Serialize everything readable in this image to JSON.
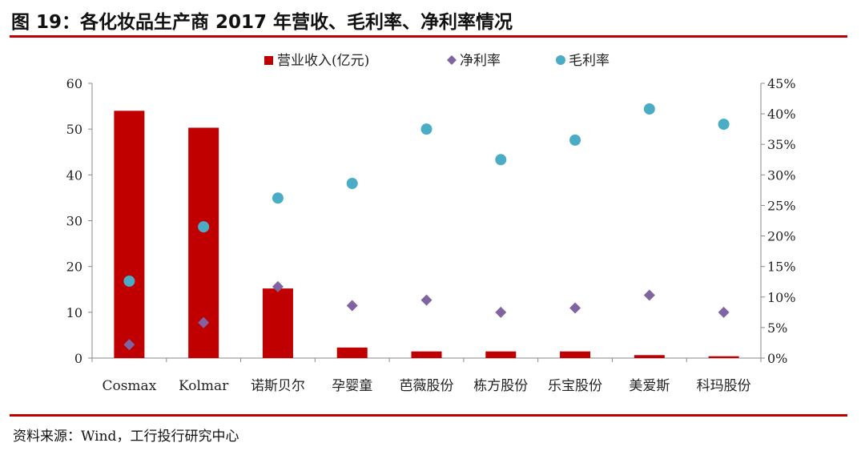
{
  "title": "图 19：各化妆品生产商 2017 年营收、毛利率、净利率情况",
  "source": "资料来源：Wind，工行投行研究中心",
  "colors": {
    "bar": "#c00000",
    "net": "#8064a2",
    "gross": "#4bacc6",
    "rule": "#c00000"
  },
  "chart_data": {
    "type": "bar+scatter",
    "categories": [
      "Cosmax",
      "Kolmar",
      "诺斯贝尔",
      "孕婴童",
      "芭薇股份",
      "栋方股份",
      "乐宝股份",
      "美爱斯",
      "科玛股份"
    ],
    "series": [
      {
        "name": "营业收入(亿元)",
        "type": "bar",
        "axis": "left",
        "values": [
          54.0,
          50.3,
          15.2,
          2.3,
          1.45,
          1.45,
          1.45,
          0.65,
          0.4
        ]
      },
      {
        "name": "净利率",
        "type": "scatter",
        "marker": "diamond",
        "axis": "right",
        "values": [
          2.2,
          5.8,
          11.7,
          8.6,
          9.5,
          7.5,
          8.2,
          10.3,
          7.5
        ]
      },
      {
        "name": "毛利率",
        "type": "scatter",
        "marker": "circle",
        "axis": "right",
        "values": [
          12.6,
          21.5,
          26.2,
          28.6,
          37.5,
          32.5,
          35.7,
          40.8,
          38.3
        ]
      }
    ],
    "ylim_left": [
      0,
      60
    ],
    "left_ticks": [
      "0",
      "10",
      "20",
      "30",
      "40",
      "50",
      "60"
    ],
    "ylim_right": [
      0,
      45
    ],
    "right_ticks": [
      "0%",
      "5%",
      "10%",
      "15%",
      "20%",
      "25%",
      "30%",
      "35%",
      "40%",
      "45%"
    ],
    "legend_position": "top",
    "grid": false
  }
}
